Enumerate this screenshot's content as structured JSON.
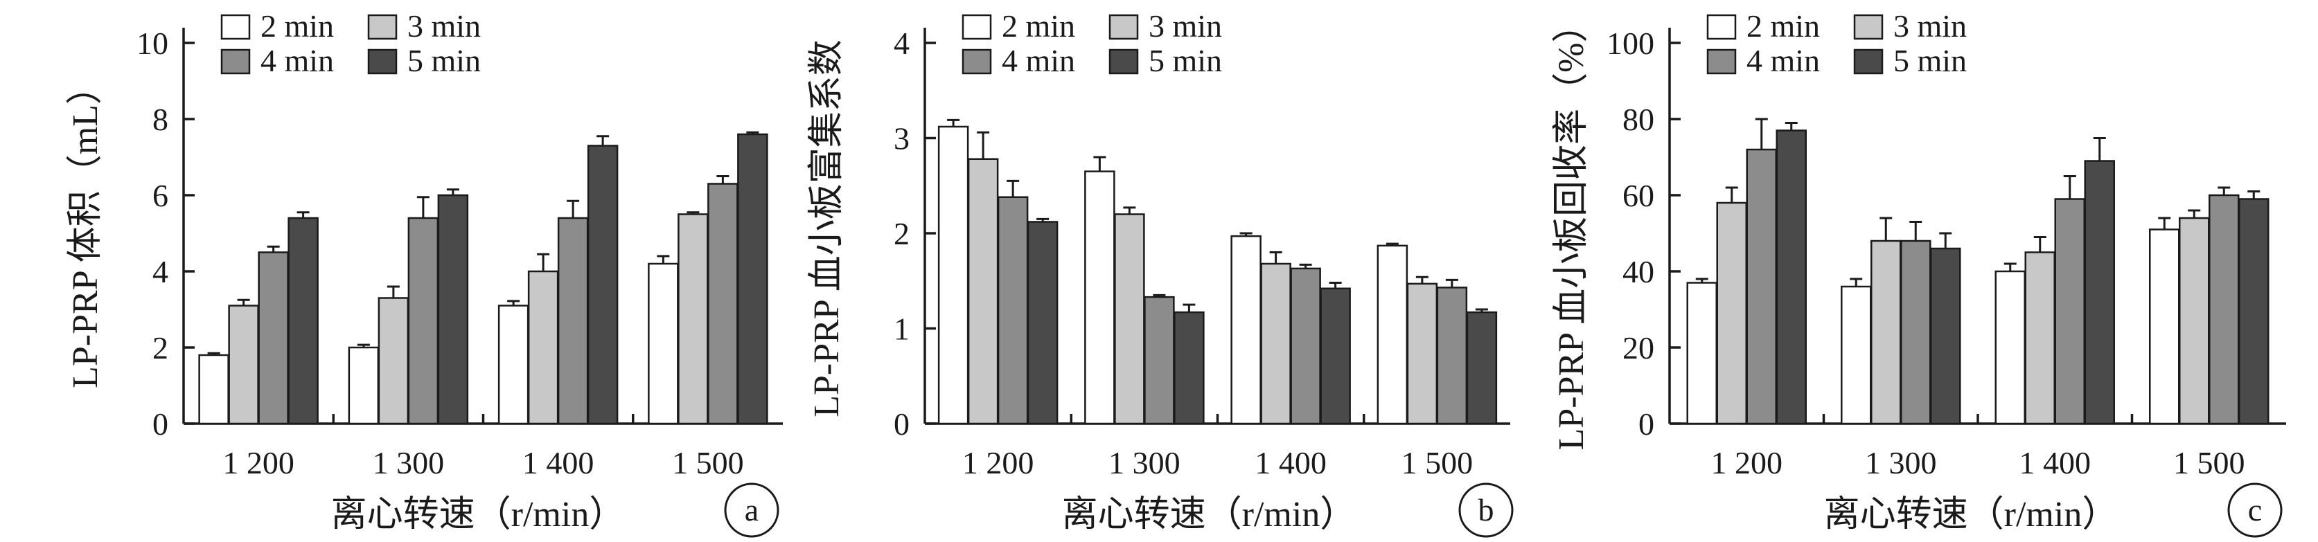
{
  "chart_data": [
    {
      "type": "bar",
      "panel_label": "a",
      "ylabel": "LP-PRP 体积（mL）",
      "xlabel": "离心转速（r/min）",
      "categories": [
        "1 200",
        "1 300",
        "1 400",
        "1 500"
      ],
      "ylim": [
        0,
        10
      ],
      "yticks": [
        0,
        2,
        4,
        6,
        8,
        10
      ],
      "legend_position": "top-left",
      "grid": false,
      "series": [
        {
          "name": "2 min",
          "color": "#ffffff",
          "values": [
            1.8,
            2.0,
            3.1,
            4.2
          ],
          "errors": [
            0.05,
            0.07,
            0.12,
            0.2
          ]
        },
        {
          "name": "3 min",
          "color": "#c8c8c8",
          "values": [
            3.1,
            3.3,
            4.0,
            5.5
          ],
          "errors": [
            0.15,
            0.3,
            0.45,
            0.05
          ]
        },
        {
          "name": "4 min",
          "color": "#8c8c8c",
          "values": [
            4.5,
            5.4,
            5.4,
            6.3
          ],
          "errors": [
            0.15,
            0.55,
            0.45,
            0.2
          ]
        },
        {
          "name": "5 min",
          "color": "#4a4a4a",
          "values": [
            5.4,
            6.0,
            7.3,
            7.6
          ],
          "errors": [
            0.15,
            0.15,
            0.25,
            0.05
          ]
        }
      ]
    },
    {
      "type": "bar",
      "panel_label": "b",
      "ylabel": "LP-PRP 血小板富集系数",
      "xlabel": "离心转速（r/min）",
      "categories": [
        "1 200",
        "1 300",
        "1 400",
        "1 500"
      ],
      "ylim": [
        0,
        4
      ],
      "yticks": [
        0,
        1,
        2,
        3,
        4
      ],
      "legend_position": "top-left",
      "grid": false,
      "series": [
        {
          "name": "2 min",
          "color": "#ffffff",
          "values": [
            3.12,
            2.65,
            1.97,
            1.87
          ],
          "errors": [
            0.07,
            0.15,
            0.03,
            0.02
          ]
        },
        {
          "name": "3 min",
          "color": "#c8c8c8",
          "values": [
            2.78,
            2.2,
            1.68,
            1.47
          ],
          "errors": [
            0.28,
            0.07,
            0.12,
            0.07
          ]
        },
        {
          "name": "4 min",
          "color": "#8c8c8c",
          "values": [
            2.38,
            1.33,
            1.63,
            1.43
          ],
          "errors": [
            0.17,
            0.02,
            0.04,
            0.08
          ]
        },
        {
          "name": "5 min",
          "color": "#4a4a4a",
          "values": [
            2.12,
            1.17,
            1.42,
            1.17
          ],
          "errors": [
            0.03,
            0.08,
            0.06,
            0.03
          ]
        }
      ]
    },
    {
      "type": "bar",
      "panel_label": "c",
      "ylabel": "LP-PRP 血小板回收率（%）",
      "xlabel": "离心转速（r/min）",
      "categories": [
        "1 200",
        "1 300",
        "1 400",
        "1 500"
      ],
      "ylim": [
        0,
        100
      ],
      "yticks": [
        0,
        20,
        40,
        60,
        80,
        100
      ],
      "legend_position": "top-left",
      "grid": false,
      "series": [
        {
          "name": "2 min",
          "color": "#ffffff",
          "values": [
            37,
            36,
            40,
            51
          ],
          "errors": [
            1,
            2,
            2,
            3
          ]
        },
        {
          "name": "3 min",
          "color": "#c8c8c8",
          "values": [
            58,
            48,
            45,
            54
          ],
          "errors": [
            4,
            6,
            4,
            2
          ]
        },
        {
          "name": "4 min",
          "color": "#8c8c8c",
          "values": [
            72,
            48,
            59,
            60
          ],
          "errors": [
            8,
            5,
            6,
            2
          ]
        },
        {
          "name": "5 min",
          "color": "#4a4a4a",
          "values": [
            77,
            46,
            69,
            59
          ],
          "errors": [
            2,
            4,
            6,
            2
          ]
        }
      ]
    }
  ]
}
